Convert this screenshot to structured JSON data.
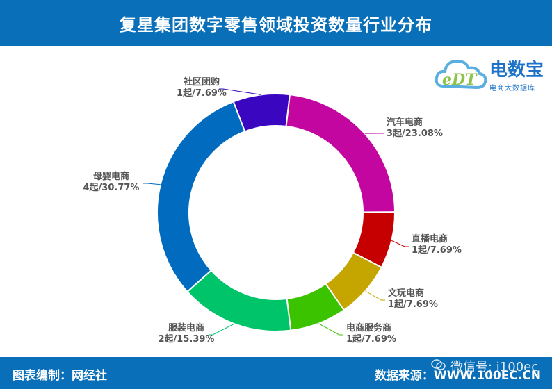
{
  "header": {
    "title": "复星集团数字零售领域投资数量行业分布"
  },
  "footer": {
    "credit": "图表编制：网经社",
    "source": "数据来源：WWW.100EC.CN",
    "wechat": "微信号: i100ec"
  },
  "logo": {
    "mark": "eDT",
    "name": "电数宝",
    "tagline": "电商大数据库"
  },
  "colors": {
    "header_bg": "#0a6fb9",
    "logo": "#1e73c8"
  },
  "chart_data": {
    "type": "pie",
    "donut": true,
    "slices": [
      {
        "name": "社区团购",
        "value": 1,
        "value_label": "1起/7.69%",
        "color": "#3a06c0"
      },
      {
        "name": "汽车电商",
        "value": 3,
        "value_label": "3起/23.08%",
        "color": "#c3069f"
      },
      {
        "name": "直播电商",
        "value": 1,
        "value_label": "1起/7.69%",
        "color": "#c60000"
      },
      {
        "name": "文玩电商",
        "value": 1,
        "value_label": "1起/7.69%",
        "color": "#c5a600"
      },
      {
        "name": "电商服务商",
        "value": 1,
        "value_label": "1起/7.69%",
        "color": "#3cc300"
      },
      {
        "name": "服装电商",
        "value": 2,
        "value_label": "2起/15.39%",
        "color": "#00c46a"
      },
      {
        "name": "母婴电商",
        "value": 4,
        "value_label": "4起/30.77%",
        "color": "#016cbf"
      }
    ]
  }
}
